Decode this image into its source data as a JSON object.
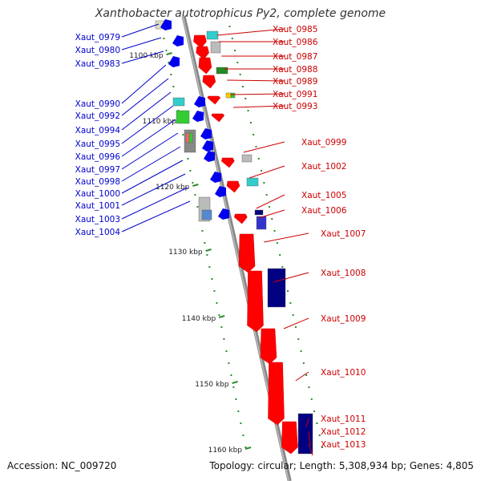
{
  "title": "Xanthobacter autotrophicus Py2, complete genome",
  "accession": "Accession: NC_009720",
  "topology": "Topology: circular; Length: 5,308,934 bp; Genes: 4,805",
  "colors": {
    "left_labels": "#0000cc",
    "right_labels": "#cc0000",
    "ticks": "#2e8b2e",
    "backbone": "#808080"
  },
  "scale_labels": [
    "1100 kbp",
    "1110 kbp",
    "1120 kbp",
    "1130 kbp",
    "1140 kbp",
    "1150 kbp",
    "1160 kbp"
  ],
  "left_genes": [
    "Xaut_0979",
    "Xaut_0980",
    "Xaut_0983",
    "Xaut_0990",
    "Xaut_0992",
    "Xaut_0994",
    "Xaut_0995",
    "Xaut_0996",
    "Xaut_0997",
    "Xaut_0998",
    "Xaut_1000",
    "Xaut_1001",
    "Xaut_1003",
    "Xaut_1004"
  ],
  "right_genes": [
    "Xaut_0985",
    "Xaut_0986",
    "Xaut_0987",
    "Xaut_0988",
    "Xaut_0989",
    "Xaut_0991",
    "Xaut_0993",
    "Xaut_0999",
    "Xaut_1002",
    "Xaut_1005",
    "Xaut_1006",
    "Xaut_1007",
    "Xaut_1008",
    "Xaut_1009",
    "Xaut_1010",
    "Xaut_1011",
    "Xaut_1012",
    "Xaut_1013"
  ]
}
